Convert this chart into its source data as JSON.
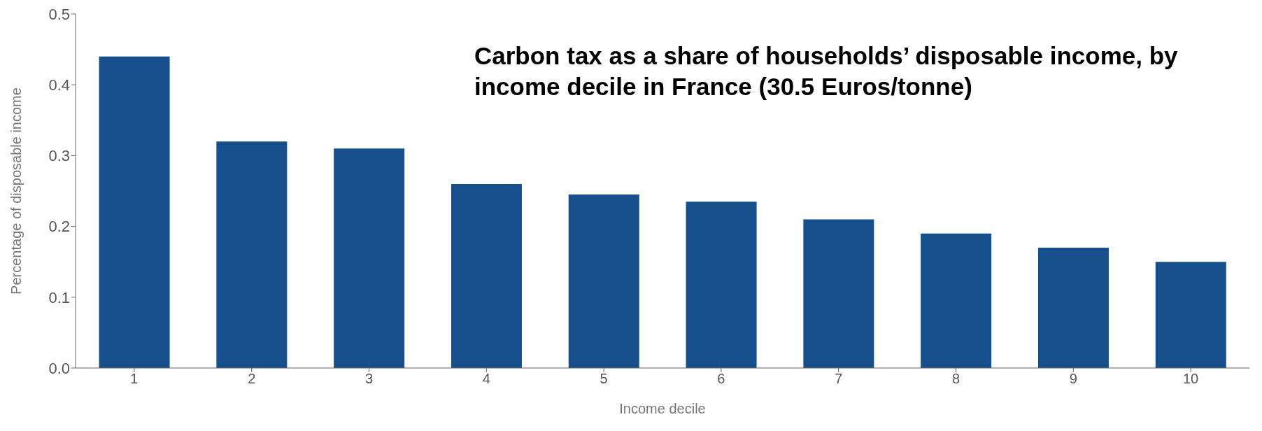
{
  "chart_data": {
    "type": "bar",
    "title": "Carbon tax as a share of households’ disposable income, by income decile in France (30.5 Euros/tonne)",
    "xlabel": "Income decile",
    "ylabel": "Percentage of disposable income",
    "categories": [
      "1",
      "2",
      "3",
      "4",
      "5",
      "6",
      "7",
      "8",
      "9",
      "10"
    ],
    "values": [
      0.44,
      0.32,
      0.31,
      0.26,
      0.245,
      0.235,
      0.21,
      0.19,
      0.17,
      0.15
    ],
    "color": "#174f8c",
    "ylim": [
      0,
      0.5
    ],
    "yticks": [
      {
        "value": 0,
        "label": "0.0"
      },
      {
        "value": 0.1,
        "label": "0.1"
      },
      {
        "value": 0.2,
        "label": "0.2"
      },
      {
        "value": 0.3,
        "label": "0.3"
      },
      {
        "value": 0.4,
        "label": "0.4"
      },
      {
        "value": 0.5,
        "label": "0.5"
      }
    ],
    "grid": false,
    "legend": false
  }
}
